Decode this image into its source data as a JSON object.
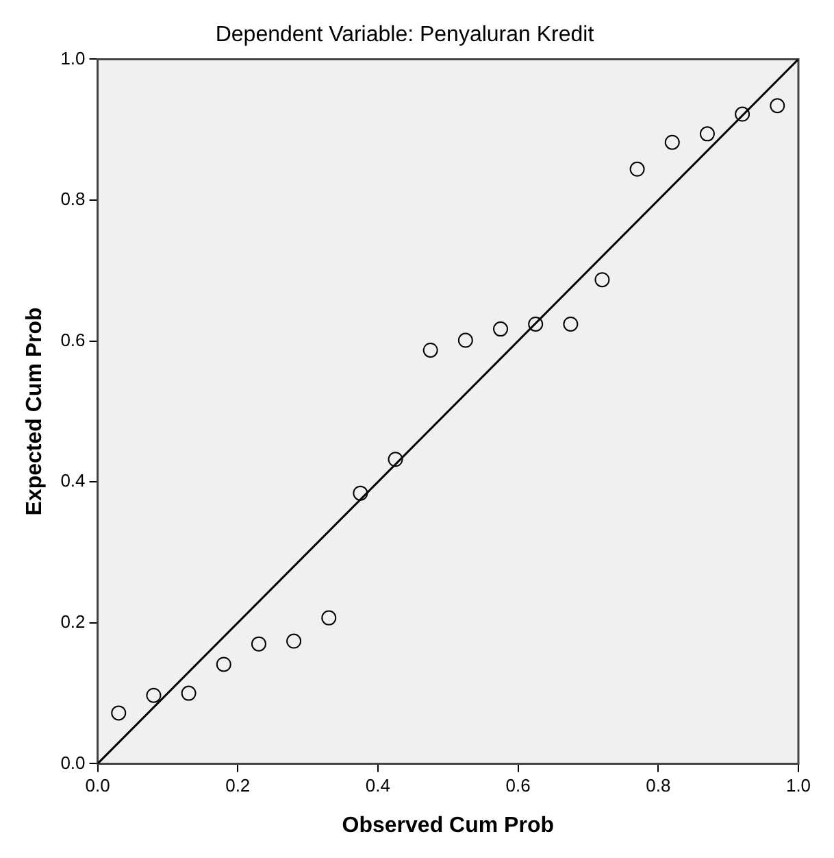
{
  "chart_data": {
    "type": "scatter",
    "title": "Dependent Variable: Penyaluran Kredit",
    "xlabel": "Observed Cum Prob",
    "ylabel": "Expected Cum Prob",
    "xlim": [
      0,
      1
    ],
    "ylim": [
      0,
      1
    ],
    "xticks": [
      {
        "value": 0,
        "label": "0.0"
      },
      {
        "value": 0.2,
        "label": "0.2"
      },
      {
        "value": 0.4,
        "label": "0.4"
      },
      {
        "value": 0.6,
        "label": "0.6"
      },
      {
        "value": 0.8,
        "label": "0.8"
      },
      {
        "value": 1,
        "label": "1.0"
      }
    ],
    "yticks": [
      {
        "value": 0,
        "label": "0.0"
      },
      {
        "value": 0.2,
        "label": "0.2"
      },
      {
        "value": 0.4,
        "label": "0.4"
      },
      {
        "value": 0.6,
        "label": "0.6"
      },
      {
        "value": 0.8,
        "label": "0.8"
      },
      {
        "value": 1,
        "label": "1.0"
      }
    ],
    "grid": false,
    "legend": false,
    "series": [
      {
        "type": "scatter",
        "marker": "circle",
        "color": "#000000",
        "x": [
          0.03,
          0.08,
          0.13,
          0.18,
          0.23,
          0.28,
          0.33,
          0.375,
          0.425,
          0.475,
          0.525,
          0.575,
          0.625,
          0.675,
          0.72,
          0.77,
          0.82,
          0.87,
          0.92,
          0.97
        ],
        "values": [
          0.072,
          0.097,
          0.1,
          0.141,
          0.17,
          0.174,
          0.207,
          0.384,
          0.432,
          0.587,
          0.601,
          0.617,
          0.624,
          0.624,
          0.687,
          0.844,
          0.882,
          0.894,
          0.922,
          0.934
        ]
      },
      {
        "type": "line",
        "color": "#000000",
        "x": [
          0,
          1
        ],
        "values": [
          0,
          1
        ],
        "marker": "none",
        "line_style": "solid"
      }
    ]
  }
}
